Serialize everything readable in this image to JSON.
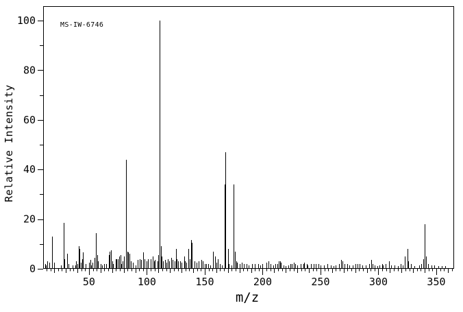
{
  "chart_data": {
    "type": "bar",
    "variant": "mass-spectrum-stick-plot",
    "annotation": "MS-IW-6746",
    "xlabel": "m/z",
    "ylabel": "Relative Intensity",
    "xlim": [
      10.4,
      365.4
    ],
    "ylim": [
      0,
      105.8
    ],
    "x_major_ticks": [
      50,
      100,
      150,
      200,
      250,
      300,
      350
    ],
    "x_long_tick_step": 10,
    "x_minor_tick_step": 3.3333,
    "y_major_ticks": [
      0,
      20,
      40,
      60,
      80,
      100
    ],
    "y_minor_ticks": [
      10,
      30,
      50,
      70,
      90
    ],
    "grid": false,
    "legend": false,
    "line_color": "#000000",
    "background": "#ffffff",
    "base_peak_mz": 111,
    "peaks": [
      [
        12,
        2
      ],
      [
        13,
        1.5
      ],
      [
        14,
        3
      ],
      [
        16,
        2.5
      ],
      [
        18,
        13
      ],
      [
        20,
        2.5
      ],
      [
        26,
        1.5
      ],
      [
        28,
        18.5
      ],
      [
        29,
        4
      ],
      [
        31,
        6
      ],
      [
        32,
        2
      ],
      [
        36,
        1.5
      ],
      [
        38,
        1.5
      ],
      [
        39,
        3
      ],
      [
        40,
        2
      ],
      [
        41,
        9
      ],
      [
        42,
        8
      ],
      [
        43,
        2.5
      ],
      [
        44,
        4
      ],
      [
        45,
        6.5
      ],
      [
        47,
        2
      ],
      [
        50,
        2.5
      ],
      [
        51,
        3.5
      ],
      [
        52,
        1.5
      ],
      [
        53,
        2.5
      ],
      [
        55,
        4.5
      ],
      [
        56,
        14.5
      ],
      [
        57,
        5.5
      ],
      [
        58,
        3
      ],
      [
        60,
        2
      ],
      [
        61,
        1.5
      ],
      [
        63,
        2
      ],
      [
        65,
        2
      ],
      [
        67,
        5.5
      ],
      [
        68,
        7
      ],
      [
        69,
        7.5
      ],
      [
        70,
        3
      ],
      [
        71,
        2
      ],
      [
        73,
        4
      ],
      [
        74,
        4
      ],
      [
        75,
        4
      ],
      [
        76,
        5
      ],
      [
        77,
        5.5
      ],
      [
        78,
        2
      ],
      [
        79,
        3
      ],
      [
        80,
        5
      ],
      [
        82,
        44
      ],
      [
        83,
        7
      ],
      [
        84,
        6.5
      ],
      [
        85,
        6
      ],
      [
        86,
        3
      ],
      [
        88,
        2.5
      ],
      [
        90,
        1.5
      ],
      [
        92,
        3.5
      ],
      [
        94,
        4
      ],
      [
        95,
        3.5
      ],
      [
        97,
        6.5
      ],
      [
        98,
        4
      ],
      [
        100,
        3
      ],
      [
        101,
        4
      ],
      [
        103,
        4
      ],
      [
        105,
        5
      ],
      [
        106,
        3
      ],
      [
        107,
        3.5
      ],
      [
        109,
        3
      ],
      [
        110,
        5.5
      ],
      [
        111,
        100
      ],
      [
        112,
        9
      ],
      [
        113,
        5
      ],
      [
        114,
        3
      ],
      [
        116,
        3.5
      ],
      [
        117,
        2.5
      ],
      [
        118,
        4
      ],
      [
        119,
        3
      ],
      [
        121,
        4.5
      ],
      [
        122,
        3.5
      ],
      [
        124,
        3
      ],
      [
        125,
        8
      ],
      [
        126,
        4
      ],
      [
        127,
        3
      ],
      [
        129,
        3
      ],
      [
        130,
        2.5
      ],
      [
        132,
        5
      ],
      [
        133,
        3
      ],
      [
        134,
        2.5
      ],
      [
        136,
        8
      ],
      [
        137,
        4
      ],
      [
        138,
        11.5
      ],
      [
        139,
        10.5
      ],
      [
        141,
        3
      ],
      [
        143,
        2.5
      ],
      [
        145,
        3
      ],
      [
        147,
        3.5
      ],
      [
        148,
        3
      ],
      [
        150,
        2
      ],
      [
        151,
        2
      ],
      [
        153,
        2
      ],
      [
        155,
        1.5
      ],
      [
        157,
        7
      ],
      [
        159,
        5
      ],
      [
        160,
        2.5
      ],
      [
        161,
        4
      ],
      [
        163,
        2
      ],
      [
        165,
        1.5
      ],
      [
        167,
        34
      ],
      [
        168,
        47
      ],
      [
        170,
        8
      ],
      [
        171,
        2
      ],
      [
        173,
        1.5
      ],
      [
        175,
        34
      ],
      [
        176,
        7
      ],
      [
        177,
        3
      ],
      [
        178,
        2.5
      ],
      [
        180,
        2
      ],
      [
        182,
        2.5
      ],
      [
        184,
        2
      ],
      [
        186,
        2
      ],
      [
        188,
        1.5
      ],
      [
        191,
        2
      ],
      [
        193,
        2
      ],
      [
        196,
        2
      ],
      [
        198,
        1.5
      ],
      [
        200,
        2
      ],
      [
        203,
        2.5
      ],
      [
        205,
        3
      ],
      [
        207,
        2
      ],
      [
        209,
        1.5
      ],
      [
        211,
        2
      ],
      [
        213,
        2
      ],
      [
        214,
        3
      ],
      [
        215,
        3
      ],
      [
        216,
        2.5
      ],
      [
        218,
        1.5
      ],
      [
        220,
        1
      ],
      [
        222,
        1.5
      ],
      [
        224,
        2
      ],
      [
        225,
        2
      ],
      [
        227,
        2.5
      ],
      [
        228,
        2
      ],
      [
        230,
        1.5
      ],
      [
        233,
        2
      ],
      [
        235,
        2
      ],
      [
        236,
        2.5
      ],
      [
        238,
        2
      ],
      [
        239,
        1.5
      ],
      [
        242,
        2
      ],
      [
        244,
        2
      ],
      [
        246,
        2
      ],
      [
        248,
        2
      ],
      [
        250,
        1.5
      ],
      [
        253,
        1.5
      ],
      [
        256,
        2
      ],
      [
        259,
        1.5
      ],
      [
        261,
        1
      ],
      [
        263,
        1.5
      ],
      [
        266,
        2
      ],
      [
        268,
        3.5
      ],
      [
        269,
        3
      ],
      [
        271,
        2
      ],
      [
        273,
        2
      ],
      [
        275,
        1.5
      ],
      [
        278,
        1.5
      ],
      [
        280,
        2
      ],
      [
        282,
        2
      ],
      [
        284,
        2
      ],
      [
        286,
        1.5
      ],
      [
        289,
        1.5
      ],
      [
        292,
        2
      ],
      [
        294,
        3.5
      ],
      [
        295,
        2
      ],
      [
        297,
        1.5
      ],
      [
        299,
        1
      ],
      [
        301,
        1.5
      ],
      [
        303,
        2
      ],
      [
        304,
        1.5
      ],
      [
        306,
        2
      ],
      [
        309,
        3
      ],
      [
        311,
        1.5
      ],
      [
        314,
        1.5
      ],
      [
        317,
        1
      ],
      [
        319,
        2
      ],
      [
        321,
        1.5
      ],
      [
        323,
        5
      ],
      [
        325,
        8
      ],
      [
        326,
        3
      ],
      [
        328,
        2
      ],
      [
        331,
        1
      ],
      [
        335,
        1.5
      ],
      [
        337,
        2
      ],
      [
        339,
        4
      ],
      [
        340,
        18
      ],
      [
        341,
        5
      ],
      [
        343,
        2
      ],
      [
        346,
        1.5
      ],
      [
        348,
        1.5
      ],
      [
        352,
        1
      ],
      [
        355,
        1
      ],
      [
        358,
        1
      ]
    ]
  }
}
